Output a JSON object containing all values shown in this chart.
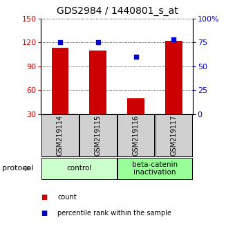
{
  "title": "GDS2984 / 1440801_s_at",
  "samples": [
    "GSM219114",
    "GSM219115",
    "GSM219116",
    "GSM219117"
  ],
  "bar_values": [
    113,
    110,
    50,
    122
  ],
  "percentile_values": [
    75,
    75,
    60,
    78
  ],
  "bar_color": "#cc0000",
  "dot_color": "#0000cc",
  "left_ylim": [
    30,
    150
  ],
  "left_yticks": [
    30,
    60,
    90,
    120,
    150
  ],
  "right_ylim": [
    0,
    100
  ],
  "right_yticks": [
    0,
    25,
    50,
    75,
    100
  ],
  "right_yticklabels": [
    "0",
    "25",
    "50",
    "75",
    "100%"
  ],
  "groups": [
    {
      "label": "control",
      "samples": [
        0,
        1
      ],
      "color": "#ccffcc"
    },
    {
      "label": "beta-catenin\ninactivation",
      "samples": [
        2,
        3
      ],
      "color": "#99ff99"
    }
  ],
  "protocol_label": "protocol",
  "legend_items": [
    {
      "color": "#cc0000",
      "label": "count"
    },
    {
      "color": "#0000cc",
      "label": "percentile rank within the sample"
    }
  ],
  "bg_color": "#ffffff",
  "plot_bg": "#ffffff",
  "grid_color": "#000000",
  "tick_label_color_left": "#cc0000",
  "tick_label_color_right": "#0000cc",
  "title_fontsize": 10,
  "bar_width": 0.45
}
